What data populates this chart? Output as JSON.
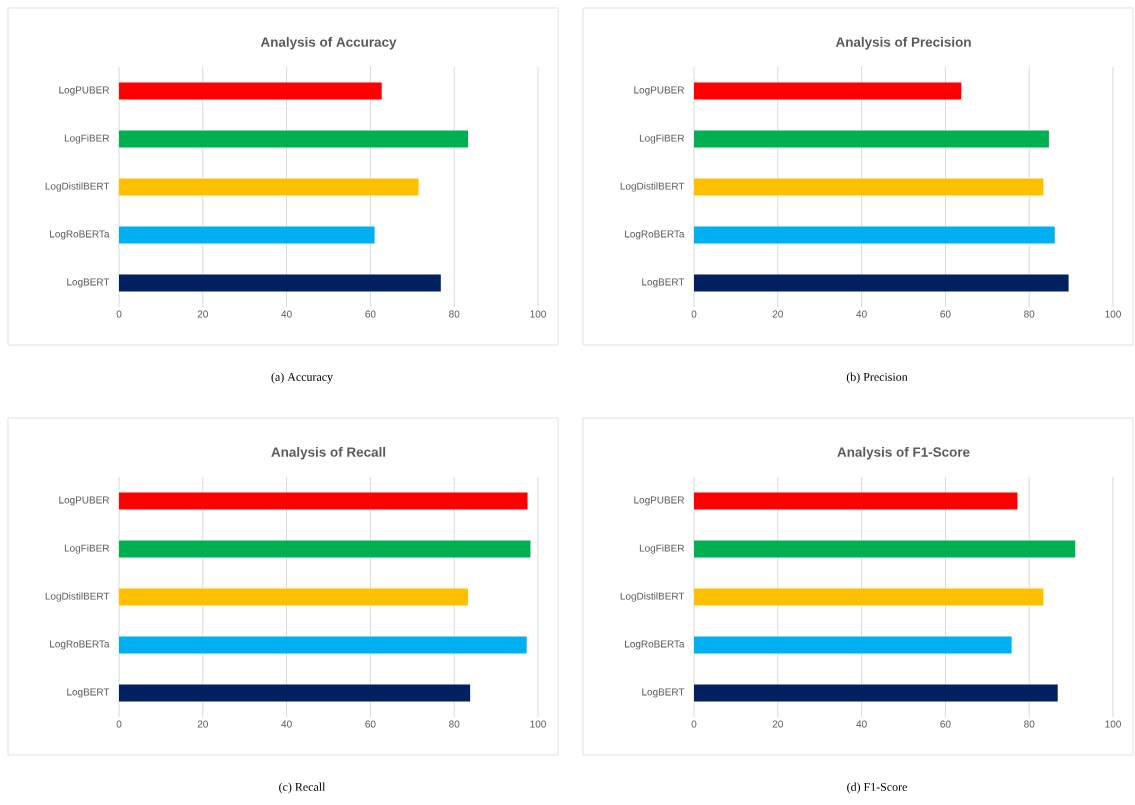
{
  "chart_data": [
    {
      "type": "bar",
      "orientation": "horizontal",
      "title": "Analysis of Accuracy",
      "categories": [
        "LogPUBER",
        "LogFiBER",
        "LogDistilBERT",
        "LogRoBERTa",
        "LogBERT"
      ],
      "values": [
        62.7,
        83.3,
        71.5,
        61.0,
        76.8
      ],
      "colors": [
        "#ff0000",
        "#00b050",
        "#ffc000",
        "#00b0f0",
        "#002060"
      ],
      "xlim": [
        0,
        100
      ],
      "xticks": [
        0,
        20,
        40,
        60,
        80,
        100
      ],
      "grid": "x",
      "annotations": [
        "(a)  Accuracy"
      ]
    },
    {
      "type": "bar",
      "orientation": "horizontal",
      "title": "Analysis of Precision",
      "categories": [
        "LogPUBER",
        "LogFiBER",
        "LogDistilBERT",
        "LogRoBERTa",
        "LogBERT"
      ],
      "values": [
        63.8,
        84.7,
        83.4,
        86.1,
        89.4
      ],
      "colors": [
        "#ff0000",
        "#00b050",
        "#ffc000",
        "#00b0f0",
        "#002060"
      ],
      "xlim": [
        0,
        100
      ],
      "xticks": [
        0,
        20,
        40,
        60,
        80,
        100
      ],
      "grid": "x",
      "annotations": [
        "(b)  Precision"
      ]
    },
    {
      "type": "bar",
      "orientation": "horizontal",
      "title": "Analysis of Recall",
      "categories": [
        "LogPUBER",
        "LogFiBER",
        "LogDistilBERT",
        "LogRoBERTa",
        "LogBERT"
      ],
      "values": [
        97.5,
        98.2,
        83.3,
        97.3,
        83.8
      ],
      "colors": [
        "#ff0000",
        "#00b050",
        "#ffc000",
        "#00b0f0",
        "#002060"
      ],
      "xlim": [
        0,
        100
      ],
      "xticks": [
        0,
        20,
        40,
        60,
        80,
        100
      ],
      "grid": "x",
      "annotations": [
        "(c)  Recall"
      ]
    },
    {
      "type": "bar",
      "orientation": "horizontal",
      "title": "Analysis of F1-Score",
      "categories": [
        "LogPUBER",
        "LogFiBER",
        "LogDistilBERT",
        "LogRoBERTa",
        "LogBERT"
      ],
      "values": [
        77.2,
        91.0,
        83.4,
        75.8,
        86.8
      ],
      "colors": [
        "#ff0000",
        "#00b050",
        "#ffc000",
        "#00b0f0",
        "#002060"
      ],
      "xlim": [
        0,
        100
      ],
      "xticks": [
        0,
        20,
        40,
        60,
        80,
        100
      ],
      "grid": "x",
      "annotations": [
        "(d)  F1-Score"
      ]
    }
  ]
}
